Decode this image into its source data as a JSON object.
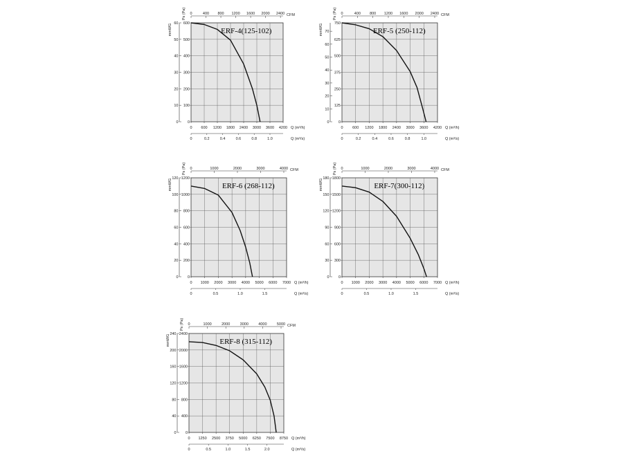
{
  "chart_data": [
    {
      "type": "line",
      "title": "ERF-4(125-102)",
      "ylabel_outer": "mmWG",
      "ylabel_inner": "Ps (Pa)",
      "top_axis_unit": "CFM",
      "x_unit_primary": "Q (m³/h)",
      "x_unit_secondary": "Q (m³/s)",
      "x_primary_ticks": [
        "0",
        "600",
        "1200",
        "1800",
        "2400",
        "3000",
        "3600",
        "4200"
      ],
      "x_primary_range": [
        0,
        4200
      ],
      "x_secondary_ticks": [
        {
          "label": "0",
          "value": 0
        },
        {
          "label": "0.2",
          "value": 0.2
        },
        {
          "label": "0.4",
          "value": 0.4
        },
        {
          "label": "0.6",
          "value": 0.6
        },
        {
          "label": "0.8",
          "value": 0.8
        },
        {
          "label": "1.0",
          "value": 1.0
        }
      ],
      "x_secondary_range": [
        0,
        1.1667
      ],
      "top_ticks": [
        {
          "label": "0",
          "value": 0
        },
        {
          "label": "400",
          "value": 400
        },
        {
          "label": "800",
          "value": 800
        },
        {
          "label": "1200",
          "value": 1200
        },
        {
          "label": "1600",
          "value": 1600
        },
        {
          "label": "2000",
          "value": 2000
        },
        {
          "label": "2400",
          "value": 2400
        }
      ],
      "top_range": [
        0,
        2472
      ],
      "y_pa_ticks": [
        "0",
        "100",
        "200",
        "300",
        "400",
        "500",
        "600"
      ],
      "y_pa_range": [
        0,
        600
      ],
      "y_mm_ticks": [
        "0",
        "10",
        "20",
        "30",
        "40",
        "50",
        "60"
      ],
      "series": [
        {
          "x": [
            0,
            600,
            1200,
            1800,
            2400,
            2800,
            3000,
            3150
          ],
          "y": [
            600,
            590,
            560,
            495,
            350,
            200,
            100,
            0
          ]
        }
      ]
    },
    {
      "type": "line",
      "title": "ERF-5 (250-112)",
      "ylabel_outer": "mmWG",
      "ylabel_inner": "Ps (Pa)",
      "top_axis_unit": "CFM",
      "x_unit_primary": "Q (m³/h)",
      "x_unit_secondary": "Q (m³/s)",
      "x_primary_ticks": [
        "0",
        "600",
        "1200",
        "1800",
        "2400",
        "3000",
        "3600",
        "4200"
      ],
      "x_primary_range": [
        0,
        4200
      ],
      "x_secondary_ticks": [
        {
          "label": "0",
          "value": 0
        },
        {
          "label": "0.2",
          "value": 0.2
        },
        {
          "label": "0.4",
          "value": 0.4
        },
        {
          "label": "0.6",
          "value": 0.6
        },
        {
          "label": "0.8",
          "value": 0.8
        },
        {
          "label": "1.0",
          "value": 1.0
        }
      ],
      "x_secondary_range": [
        0,
        1.1667
      ],
      "top_ticks": [
        {
          "label": "0",
          "value": 0
        },
        {
          "label": "400",
          "value": 400
        },
        {
          "label": "800",
          "value": 800
        },
        {
          "label": "1200",
          "value": 1200
        },
        {
          "label": "1600",
          "value": 1600
        },
        {
          "label": "2000",
          "value": 2000
        },
        {
          "label": "2400",
          "value": 2400
        }
      ],
      "top_range": [
        0,
        2472
      ],
      "y_pa_ticks": [
        "0",
        "125",
        "250",
        "375",
        "500",
        "625",
        "750"
      ],
      "y_pa_range": [
        0,
        750
      ],
      "y_mm_ticks": [
        "0",
        "10",
        "20",
        "30",
        "40",
        "50",
        "60",
        "70"
      ],
      "y_mm_range": [
        0,
        76.5
      ],
      "series": [
        {
          "x": [
            0,
            600,
            1200,
            1800,
            2400,
            3000,
            3300,
            3550,
            3700
          ],
          "y": [
            750,
            735,
            705,
            645,
            540,
            380,
            260,
            100,
            0
          ]
        }
      ]
    },
    {
      "type": "line",
      "title": "ERF-6 (268-112)",
      "ylabel_outer": "mmWG",
      "ylabel_inner": "Ps (Pa)",
      "top_axis_unit": "CFM",
      "x_unit_primary": "Q (m³/h)",
      "x_unit_secondary": "Q (m³/s)",
      "x_primary_ticks": [
        "0",
        "1000",
        "2000",
        "3000",
        "4000",
        "5000",
        "6000",
        "7000"
      ],
      "x_primary_range": [
        0,
        7000
      ],
      "x_secondary_ticks": [
        {
          "label": "0",
          "value": 0
        },
        {
          "label": "0.5",
          "value": 0.5
        },
        {
          "label": "1.0",
          "value": 1.0
        },
        {
          "label": "1.5",
          "value": 1.5
        }
      ],
      "x_secondary_range": [
        0,
        1.944
      ],
      "top_ticks": [
        {
          "label": "0",
          "value": 0
        },
        {
          "label": "1000",
          "value": 1000
        },
        {
          "label": "2000",
          "value": 2000
        },
        {
          "label": "3000",
          "value": 3000
        },
        {
          "label": "4000",
          "value": 4000
        }
      ],
      "top_range": [
        0,
        4120
      ],
      "y_pa_ticks": [
        "0",
        "200",
        "400",
        "600",
        "800",
        "1000",
        "1200"
      ],
      "y_pa_range": [
        0,
        1200
      ],
      "y_mm_ticks": [
        "0",
        "20",
        "40",
        "60",
        "80",
        "100",
        "120"
      ],
      "series": [
        {
          "x": [
            0,
            1000,
            2000,
            3000,
            3600,
            4000,
            4300,
            4500
          ],
          "y": [
            1100,
            1070,
            990,
            780,
            560,
            360,
            170,
            0
          ]
        }
      ]
    },
    {
      "type": "line",
      "title": "ERF-7(300-112)",
      "ylabel_outer": "mmWG",
      "ylabel_inner": "Ps (Pa)",
      "top_axis_unit": "CFM",
      "x_unit_primary": "Q (m³/h)",
      "x_unit_secondary": "Q (m³/s)",
      "x_primary_ticks": [
        "0",
        "1000",
        "2000",
        "3000",
        "4000",
        "5000",
        "6000",
        "7000"
      ],
      "x_primary_range": [
        0,
        7000
      ],
      "x_secondary_ticks": [
        {
          "label": "0",
          "value": 0
        },
        {
          "label": "0.5",
          "value": 0.5
        },
        {
          "label": "1.0",
          "value": 1.0
        },
        {
          "label": "1.5",
          "value": 1.5
        }
      ],
      "x_secondary_range": [
        0,
        1.944
      ],
      "top_ticks": [
        {
          "label": "0",
          "value": 0
        },
        {
          "label": "1000",
          "value": 1000
        },
        {
          "label": "2000",
          "value": 2000
        },
        {
          "label": "3000",
          "value": 3000
        },
        {
          "label": "4000",
          "value": 4000
        }
      ],
      "top_range": [
        0,
        4120
      ],
      "y_pa_ticks": [
        "0",
        "300",
        "600",
        "900",
        "1200",
        "1500",
        "1800"
      ],
      "y_pa_range": [
        0,
        1800
      ],
      "y_mm_ticks": [
        "0",
        "30",
        "60",
        "90",
        "120",
        "150",
        "180"
      ],
      "series": [
        {
          "x": [
            0,
            1000,
            2000,
            3000,
            4000,
            5000,
            5600,
            6000,
            6200
          ],
          "y": [
            1650,
            1620,
            1540,
            1370,
            1100,
            700,
            400,
            150,
            0
          ]
        }
      ]
    },
    {
      "type": "line",
      "title": "ERF-8 (315-112)",
      "ylabel_outer": "mmWG",
      "ylabel_inner": "Ps (Pa)",
      "top_axis_unit": "CFM",
      "x_unit_primary": "Q (m³/h)",
      "x_unit_secondary": "Q (m³/s)",
      "x_primary_ticks": [
        "0",
        "1250",
        "2500",
        "3750",
        "5000",
        "6250",
        "7500",
        "8750"
      ],
      "x_primary_range": [
        0,
        8750
      ],
      "x_secondary_ticks": [
        {
          "label": "0",
          "value": 0
        },
        {
          "label": "0.5",
          "value": 0.5
        },
        {
          "label": "1.0",
          "value": 1.0
        },
        {
          "label": "1.5",
          "value": 1.5
        },
        {
          "label": "2.0",
          "value": 2.0
        }
      ],
      "x_secondary_range": [
        0,
        2.43
      ],
      "top_ticks": [
        {
          "label": "0",
          "value": 0
        },
        {
          "label": "1000",
          "value": 1000
        },
        {
          "label": "2000",
          "value": 2000
        },
        {
          "label": "3000",
          "value": 3000
        },
        {
          "label": "4000",
          "value": 4000
        },
        {
          "label": "5000",
          "value": 5000
        }
      ],
      "top_range": [
        0,
        5150
      ],
      "y_pa_ticks": [
        "0",
        "400",
        "800",
        "1200",
        "1600",
        "2000",
        "2400"
      ],
      "y_pa_range": [
        0,
        2400
      ],
      "y_mm_ticks": [
        "0",
        "40",
        "80",
        "120",
        "160",
        "200",
        "240"
      ],
      "series": [
        {
          "x": [
            0,
            1250,
            2500,
            3750,
            5000,
            6250,
            7000,
            7500,
            7850,
            8050
          ],
          "y": [
            2200,
            2180,
            2110,
            1980,
            1760,
            1420,
            1100,
            780,
            400,
            0
          ]
        }
      ]
    }
  ]
}
